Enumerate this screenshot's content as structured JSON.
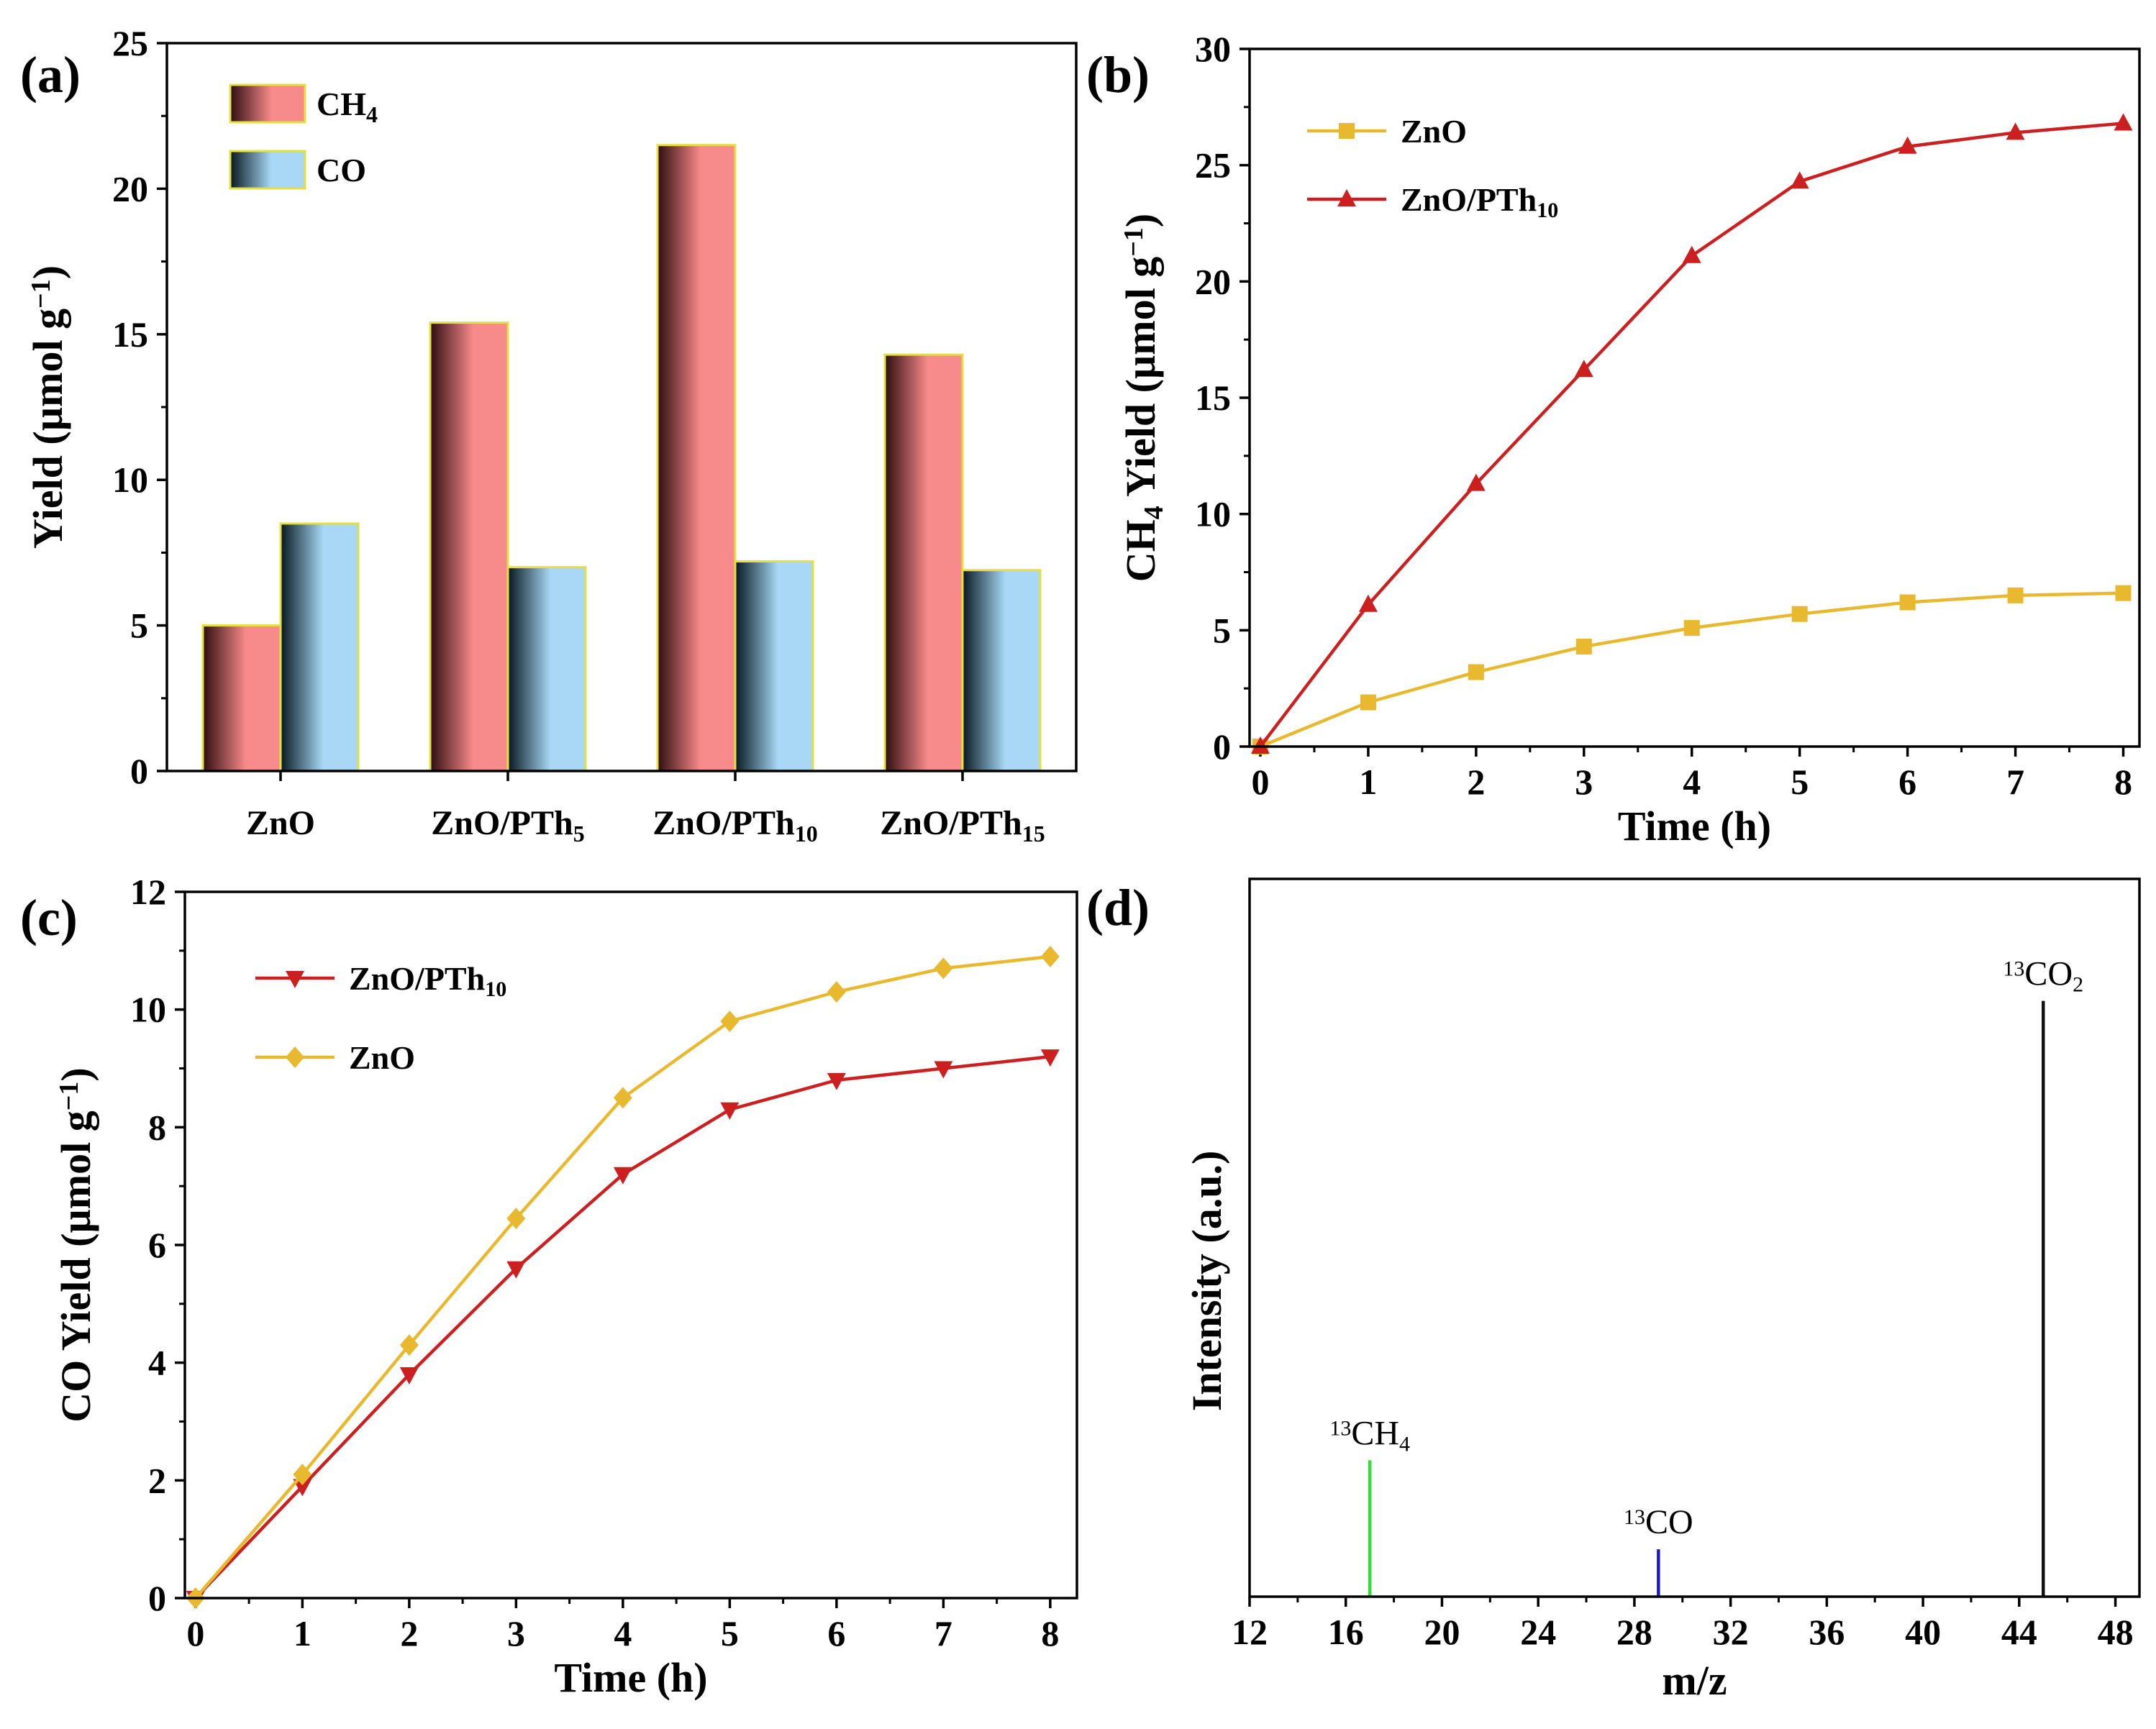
{
  "chart_data": [
    {
      "id": "a",
      "type": "bar",
      "panel_label": "(a)",
      "categories": [
        {
          "base": "ZnO",
          "sub": ""
        },
        {
          "base": "ZnO/PTh",
          "sub": "5"
        },
        {
          "base": "ZnO/PTh",
          "sub": "10"
        },
        {
          "base": "ZnO/PTh",
          "sub": "15"
        }
      ],
      "series": [
        {
          "name": "CH",
          "name_sub": "4",
          "values": [
            5.0,
            15.4,
            21.5,
            14.3
          ],
          "color": "#f78a8a",
          "dark": "#2e0d10"
        },
        {
          "name": "CO",
          "name_sub": "",
          "values": [
            8.5,
            7.0,
            7.2,
            6.9
          ],
          "color": "#a8d8f5",
          "dark": "#071820"
        }
      ],
      "ylabel": "Yield (µmol g",
      "ylabel_sup": "−1",
      "ylabel_end": ")",
      "ylim": [
        0,
        25
      ],
      "yticks": [
        0,
        5,
        10,
        15,
        20,
        25
      ],
      "legend": "top-left"
    },
    {
      "id": "b",
      "type": "line",
      "panel_label": "(b)",
      "x": [
        0,
        1,
        2,
        3,
        4,
        5,
        6,
        7,
        8
      ],
      "series": [
        {
          "name": "ZnO",
          "name_sub": "",
          "values": [
            0,
            1.9,
            3.2,
            4.3,
            5.1,
            5.7,
            6.2,
            6.5,
            6.6
          ],
          "color": "#e8b92e",
          "marker": "square"
        },
        {
          "name": "ZnO/PTh",
          "name_sub": "10",
          "values": [
            0,
            6.1,
            11.3,
            16.2,
            21.1,
            24.3,
            25.8,
            26.4,
            26.8
          ],
          "color": "#cc2020",
          "marker": "triangle-up"
        }
      ],
      "xlabel": "Time (h)",
      "ylabel": "CH",
      "ylabel_sub": "4",
      "ylabel_mid": " Yield (µmol g",
      "ylabel_sup": "−1",
      "ylabel_end": ")",
      "xlim": [
        -0.1,
        8.15
      ],
      "ylim": [
        0,
        30
      ],
      "xticks": [
        0,
        1,
        2,
        3,
        4,
        5,
        6,
        7,
        8
      ],
      "yticks": [
        0,
        5,
        10,
        15,
        20,
        25,
        30
      ],
      "legend": "top-left"
    },
    {
      "id": "c",
      "type": "line",
      "panel_label": "(c)",
      "x": [
        0,
        1,
        2,
        3,
        4,
        5,
        6,
        7,
        8
      ],
      "series": [
        {
          "name": "ZnO/PTh",
          "name_sub": "10",
          "values": [
            0,
            1.9,
            3.8,
            5.6,
            7.2,
            8.3,
            8.8,
            9.0,
            9.2
          ],
          "color": "#cc2020",
          "marker": "triangle-down"
        },
        {
          "name": "ZnO",
          "name_sub": "",
          "values": [
            0,
            2.1,
            4.3,
            6.45,
            8.5,
            9.8,
            10.3,
            10.7,
            10.9
          ],
          "color": "#e8b92e",
          "marker": "diamond"
        }
      ],
      "xlabel": "Time (h)",
      "ylabel": "CO Yield (µmol g",
      "ylabel_sup": "−1",
      "ylabel_end": ")",
      "xlim": [
        -0.1,
        8.25
      ],
      "ylim": [
        0,
        12
      ],
      "xticks": [
        0,
        1,
        2,
        3,
        4,
        5,
        6,
        7,
        8
      ],
      "yticks": [
        0,
        2,
        4,
        6,
        8,
        10,
        12
      ],
      "legend": "top-left"
    },
    {
      "id": "d",
      "type": "bar",
      "subtype": "mass-spectrum",
      "panel_label": "(d)",
      "peaks": [
        {
          "mz": 17,
          "intensity": 0.19,
          "sup": "13",
          "label": "CH",
          "sub": "4",
          "color": "#33dd33"
        },
        {
          "mz": 29,
          "intensity": 0.066,
          "sup": "13",
          "label": "CO",
          "sub": "",
          "color": "#1a1acc"
        },
        {
          "mz": 45,
          "intensity": 0.83,
          "sup": "13",
          "label": "CO",
          "sub": "2",
          "color": "#111111"
        }
      ],
      "xlabel": "m/z",
      "ylabel": "Intensity (a.u.)",
      "xlim": [
        12,
        49
      ],
      "ylim": [
        0,
        1
      ],
      "xticks": [
        12,
        16,
        20,
        24,
        28,
        32,
        36,
        40,
        44,
        48
      ]
    }
  ]
}
